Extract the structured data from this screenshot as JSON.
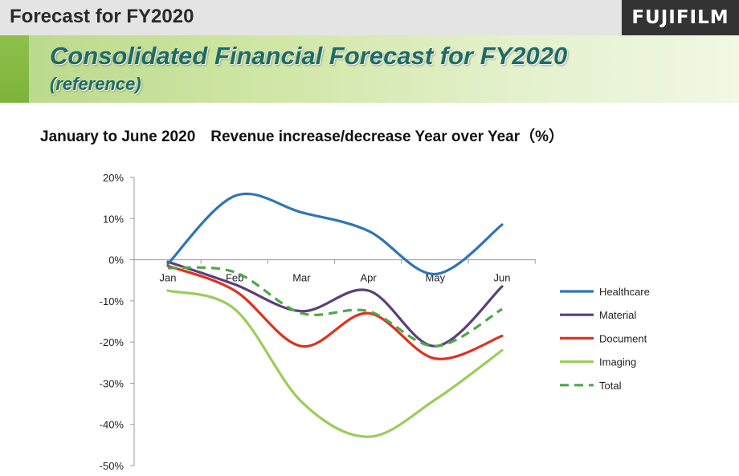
{
  "header": {
    "top_title": "Forecast for FY2020",
    "logo_text": "FUJIFILM",
    "banner_title": "Consolidated Financial Forecast for FY2020",
    "banner_subtitle": "(reference)"
  },
  "colors": {
    "healthcare": "#2e75b6",
    "material": "#5c3f7a",
    "document": "#e0301e",
    "imaging": "#9acd5a",
    "total": "#4ea84a"
  },
  "chart_data": {
    "type": "line",
    "title": "January to June 2020　Revenue increase/decrease Year over Year（%）",
    "categories": [
      "Jan",
      "Feb",
      "Mar",
      "Apr",
      "May",
      "Jun"
    ],
    "y_ticks": [
      "20%",
      "10%",
      "0%",
      "-10%",
      "-20%",
      "-30%",
      "-40%",
      "-50%"
    ],
    "ylim": [
      -50,
      20
    ],
    "y_step": 10,
    "grid": false,
    "legend_position": "right",
    "series": [
      {
        "name": "Healthcare",
        "key": "healthcare",
        "values": [
          -1,
          15.5,
          11.5,
          7,
          -3.5,
          8.5
        ],
        "style": "solid"
      },
      {
        "name": "Material",
        "key": "material",
        "values": [
          -0.5,
          -6,
          -12.5,
          -7.5,
          -21,
          -6.5
        ],
        "style": "solid"
      },
      {
        "name": "Document",
        "key": "document",
        "values": [
          -1.5,
          -7.5,
          -21,
          -13,
          -24,
          -18.5
        ],
        "style": "solid"
      },
      {
        "name": "Imaging",
        "key": "imaging",
        "values": [
          -7.5,
          -12,
          -34.5,
          -43,
          -34,
          -22
        ],
        "style": "solid"
      },
      {
        "name": "Total",
        "key": "total",
        "values": [
          -2,
          -3,
          -13,
          -12.5,
          -21,
          -12
        ],
        "style": "dashed"
      }
    ]
  }
}
